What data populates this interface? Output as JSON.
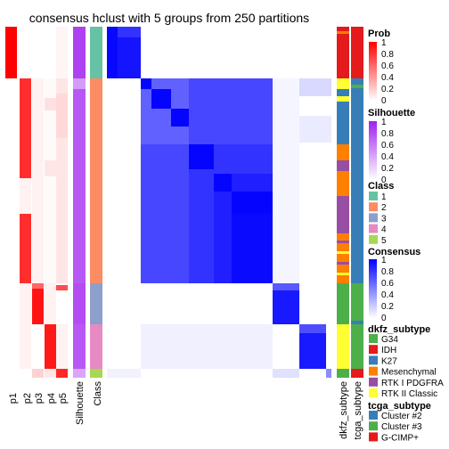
{
  "title": "consensus hclust with 5 groups from 250 partitions",
  "chart_data": {
    "type": "heatmap",
    "title": "consensus hclust with 5 groups from 250 partitions",
    "row_clusters": [
      {
        "class": "1",
        "prob_pattern": "p1 high"
      },
      {
        "class": "2",
        "prob_pattern": "p2 high"
      },
      {
        "class": "3",
        "prob_pattern": "p3 high"
      },
      {
        "class": "4",
        "prob_pattern": "p4 high"
      },
      {
        "class": "5",
        "prob_pattern": "p5 high"
      }
    ],
    "probability_columns": [
      "p1",
      "p2",
      "p3",
      "p4",
      "p5"
    ],
    "annotation_columns": [
      "Silhouette",
      "Class"
    ],
    "right_annotations": [
      "dkfz_subtype",
      "tcga_subtype"
    ],
    "legends": {
      "prob": {
        "title": "Prob",
        "ticks": [
          "1",
          "0.8",
          "0.6",
          "0.4",
          "0.2",
          "0"
        ],
        "low_color": "#ffffff",
        "high_color": "#ff0000"
      },
      "silhouette": {
        "title": "Silhouette",
        "ticks": [
          "1",
          "0.8",
          "0.6",
          "0.4",
          "0.2",
          "0"
        ],
        "low_color": "#ffffff",
        "high_color": "#a020f0"
      },
      "class": {
        "title": "Class",
        "items": [
          {
            "label": "1",
            "color": "#66c2a5"
          },
          {
            "label": "2",
            "color": "#fc8d62"
          },
          {
            "label": "3",
            "color": "#8da0cb"
          },
          {
            "label": "4",
            "color": "#e78ac3"
          },
          {
            "label": "5",
            "color": "#a6d854"
          }
        ]
      },
      "consensus": {
        "title": "Consensus",
        "ticks": [
          "1",
          "0.8",
          "0.6",
          "0.4",
          "0.2",
          "0"
        ],
        "low_color": "#ffffff",
        "high_color": "#0000ff"
      },
      "dkfz": {
        "title": "dkfz_subtype",
        "items": [
          {
            "label": "G34",
            "color": "#4daf4a"
          },
          {
            "label": "IDH",
            "color": "#e41a1c"
          },
          {
            "label": "K27",
            "color": "#377eb8"
          },
          {
            "label": "Mesenchymal",
            "color": "#ff7f00"
          },
          {
            "label": "RTK I PDGFRA",
            "color": "#984ea3"
          },
          {
            "label": "RTK II Classic",
            "color": "#ffff33"
          }
        ]
      },
      "tcga": {
        "title": "tcga_subtype",
        "items": [
          {
            "label": "Cluster #2",
            "color": "#377eb8"
          },
          {
            "label": "Cluster #3",
            "color": "#4daf4a"
          },
          {
            "label": "G-CIMP+",
            "color": "#e41a1c"
          }
        ]
      }
    }
  }
}
